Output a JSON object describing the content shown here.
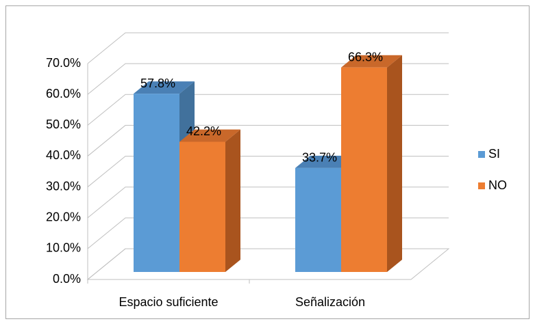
{
  "chart_data": {
    "type": "bar3d",
    "categories": [
      "Espacio suficiente",
      "Señalización"
    ],
    "series": [
      {
        "name": "SI",
        "color": "#5b9bd5",
        "values": [
          57.8,
          33.7
        ],
        "value_labels": [
          "57.8%",
          "33.7%"
        ]
      },
      {
        "name": "NO",
        "color": "#ed7d31",
        "values": [
          42.2,
          66.3
        ],
        "value_labels": [
          "42.2%",
          "66.3%"
        ]
      }
    ],
    "ylim": [
      0,
      70
    ],
    "yticks": [
      {
        "value": 0,
        "label": "0.0%"
      },
      {
        "value": 10,
        "label": "10.0%"
      },
      {
        "value": 20,
        "label": "20.0%"
      },
      {
        "value": 30,
        "label": "30.0%"
      },
      {
        "value": 40,
        "label": "40.0%"
      },
      {
        "value": 50,
        "label": "50.0%"
      },
      {
        "value": 60,
        "label": "60.0%"
      },
      {
        "value": 70,
        "label": "70.0%"
      }
    ],
    "grid": true,
    "legend": "right"
  }
}
